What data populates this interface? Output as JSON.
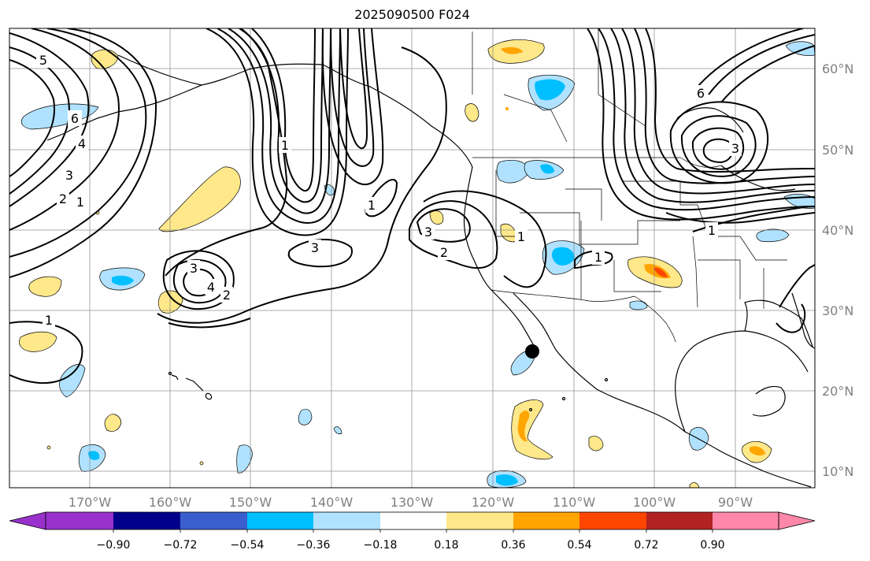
{
  "title": "2025090500 F024",
  "lat_labels": [
    "60°N",
    "50°N",
    "40°N",
    "30°N",
    "20°N",
    "10°N"
  ],
  "lon_labels": [
    "170°W",
    "160°W",
    "150°W",
    "140°W",
    "130°W",
    "120°W",
    "110°W",
    "100°W",
    "90°W"
  ],
  "colorbar": {
    "ticks": [
      "−0.90",
      "−0.72",
      "−0.54",
      "−0.36",
      "−0.18",
      "0.18",
      "0.36",
      "0.54",
      "0.72",
      "0.90"
    ],
    "colors": [
      "#9932cc",
      "#00008b",
      "#3a5fcd",
      "#00bfff",
      "#b0e2ff",
      "#ffffff",
      "#ffe88a",
      "#ffa500",
      "#ff4500",
      "#b22222",
      "#ff88aa"
    ]
  },
  "contour_labels": [
    "5",
    "6",
    "4",
    "3",
    "2",
    "1",
    "1",
    "3",
    "4",
    "2",
    "3",
    "1",
    "1",
    "3",
    "2",
    "1",
    "1",
    "3",
    "6",
    "1"
  ],
  "marker": "black-dot"
}
